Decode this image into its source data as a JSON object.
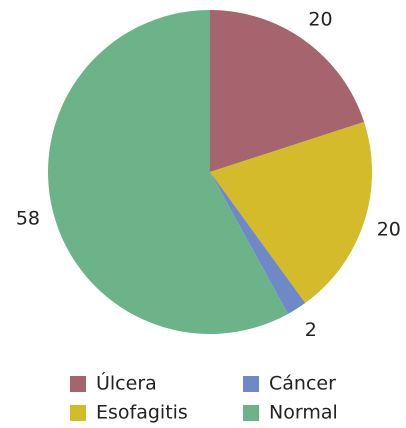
{
  "chart_data": {
    "type": "pie",
    "categories": [
      "Úlcera",
      "Esofagitis",
      "Cáncer",
      "Normal"
    ],
    "values": [
      20,
      20,
      2,
      58
    ],
    "colors": [
      "#a5646e",
      "#d4bb2a",
      "#6f88c8",
      "#6db38a"
    ],
    "start_angle": 0,
    "direction": "clockwise"
  }
}
